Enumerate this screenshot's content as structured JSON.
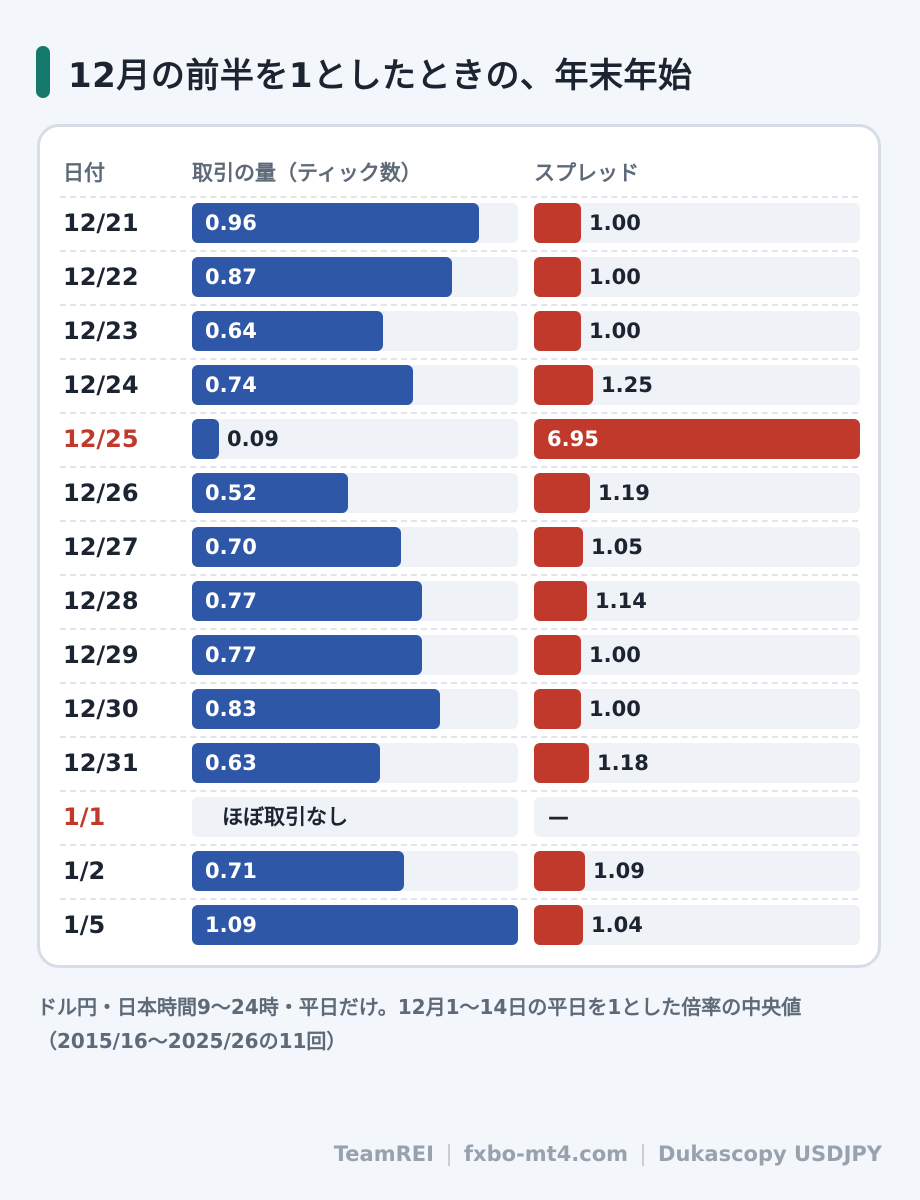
{
  "title": "12月の前半を1としたときの、年末年始",
  "chart_data": {
    "type": "bar",
    "columns": {
      "date": "日付",
      "volume": "取引の量（ティック数）",
      "spread": "スプレッド"
    },
    "categories": [
      "12/21",
      "12/22",
      "12/23",
      "12/24",
      "12/25",
      "12/26",
      "12/27",
      "12/28",
      "12/29",
      "12/30",
      "12/31",
      "1/1",
      "1/2",
      "1/5"
    ],
    "highlighted": [
      "12/25",
      "1/1"
    ],
    "series": [
      {
        "name": "取引の量（ティック数）",
        "values": [
          0.96,
          0.87,
          0.64,
          0.74,
          0.09,
          0.52,
          0.7,
          0.77,
          0.77,
          0.83,
          0.63,
          null,
          0.71,
          1.09
        ],
        "labels": [
          "0.96",
          "0.87",
          "0.64",
          "0.74",
          "0.09",
          "0.52",
          "0.70",
          "0.77",
          "0.77",
          "0.83",
          "0.63",
          "",
          "0.71",
          "1.09"
        ],
        "xlim": [
          0,
          1.09
        ]
      },
      {
        "name": "スプレッド",
        "values": [
          1.0,
          1.0,
          1.0,
          1.25,
          6.95,
          1.19,
          1.05,
          1.14,
          1.0,
          1.0,
          1.18,
          null,
          1.09,
          1.04
        ],
        "labels": [
          "1.00",
          "1.00",
          "1.00",
          "1.25",
          "6.95",
          "1.19",
          "1.05",
          "1.14",
          "1.00",
          "1.00",
          "1.18",
          "",
          "1.09",
          "1.04"
        ],
        "xlim": [
          0,
          6.95
        ]
      }
    ],
    "missing_notes": {
      "volume": "ほぼ取引なし",
      "spread": "—"
    },
    "colors": {
      "volume": "#2f57a8",
      "spread": "#c0392b",
      "highlight_date": "#c0392b",
      "accent": "#14796b"
    }
  },
  "footnote": "ドル円・日本時間9〜24時・平日だけ。12月1〜14日の平日を1とした倍率の中央値（2015/16〜2025/26の11回）",
  "credits": [
    "TeamREI",
    "fxbo-mt4.com",
    "Dukascopy USDJPY"
  ]
}
